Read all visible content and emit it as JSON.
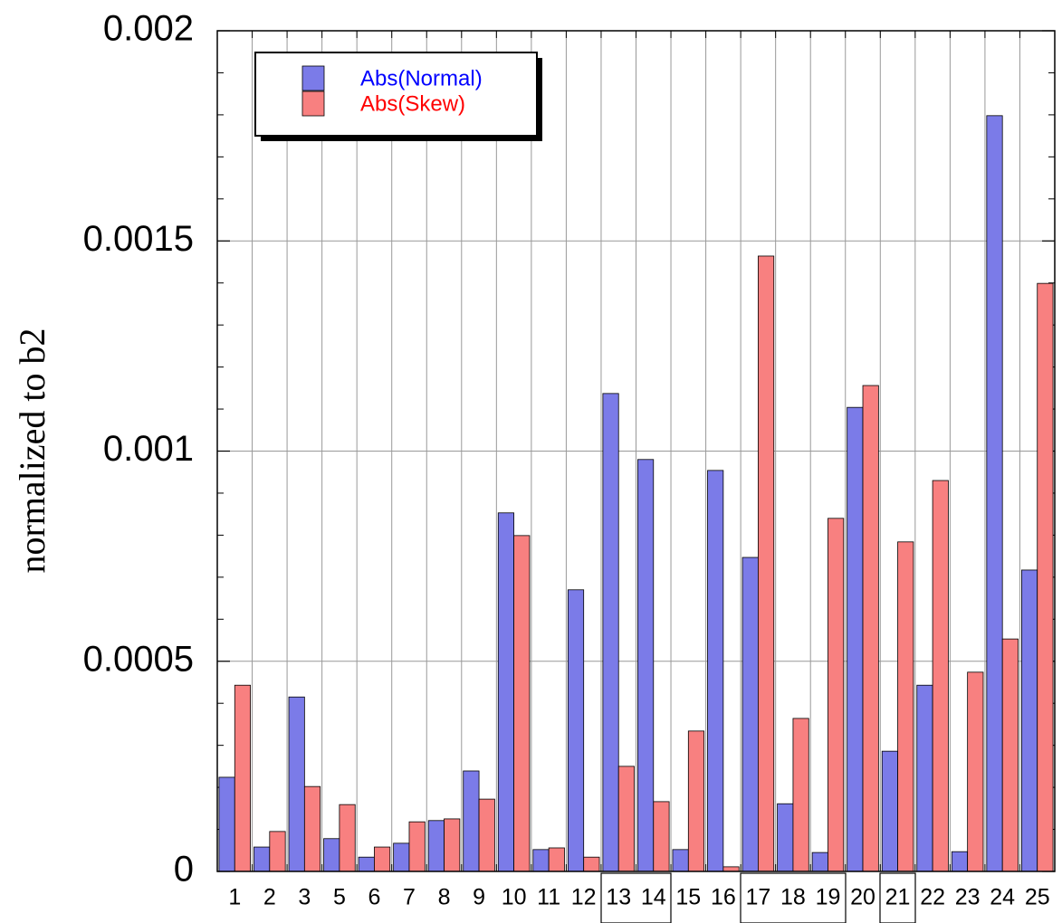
{
  "chart_data": {
    "type": "bar",
    "ylabel": "normalized to b2",
    "categories": [
      "1",
      "2",
      "3",
      "5",
      "6",
      "7",
      "8",
      "9",
      "10",
      "11",
      "12",
      "13",
      "14",
      "15",
      "16",
      "17",
      "18",
      "19",
      "20",
      "21",
      "22",
      "23",
      "24",
      "25"
    ],
    "series": [
      {
        "name": "Abs(Normal)",
        "color": "#7b7be8",
        "values": [
          0.000224,
          5.8e-05,
          0.000415,
          7.8e-05,
          3.4e-05,
          6.7e-05,
          0.000121,
          0.000239,
          0.000853,
          5.2e-05,
          0.00067,
          0.001137,
          0.00098,
          5.2e-05,
          0.000954,
          0.000747,
          0.000161,
          4.5e-05,
          0.001104,
          0.000286,
          0.000443,
          4.7e-05,
          0.001798,
          0.000717
        ]
      },
      {
        "name": "Abs(Skew)",
        "color": "#f88080",
        "values": [
          0.000443,
          9.5e-05,
          0.000202,
          0.000159,
          5.8e-05,
          0.000118,
          0.000125,
          0.000172,
          0.000799,
          5.6e-05,
          3.4e-05,
          0.00025,
          0.000166,
          0.000334,
          1.1e-05,
          0.001464,
          0.000364,
          0.00084,
          0.001156,
          0.000784,
          0.00093,
          0.000474,
          0.000553,
          0.001399
        ]
      }
    ],
    "ylim": [
      0,
      0.002
    ],
    "yticks": [
      0,
      0.0005,
      0.001,
      0.0015,
      0.002
    ],
    "grid": true,
    "legend": "upper left"
  }
}
